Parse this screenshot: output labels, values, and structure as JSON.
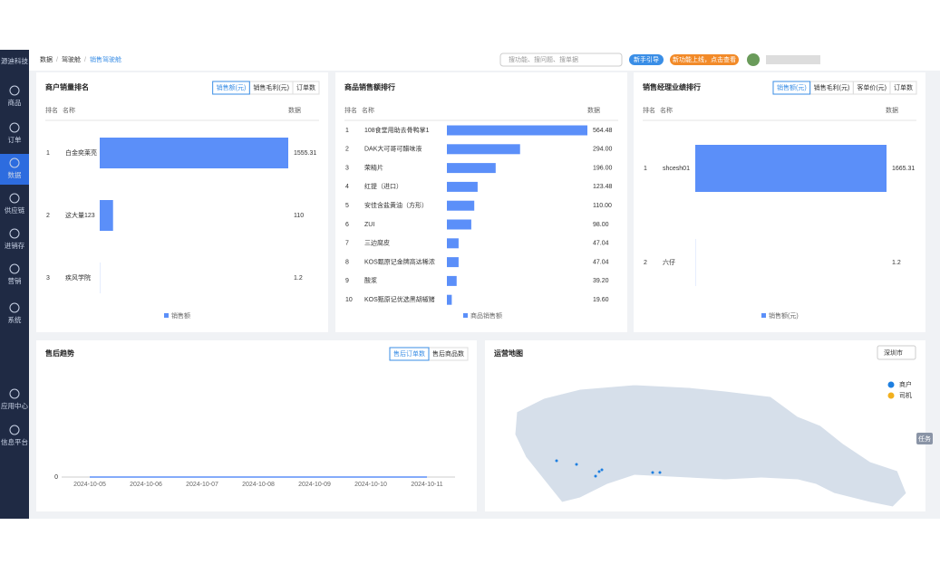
{
  "app": {
    "logo": "源迪科技",
    "nav": [
      "商品",
      "订单",
      "数据",
      "供应链",
      "进销存",
      "营销",
      "系统",
      "应用中心",
      "信息平台"
    ],
    "breadcrumb": [
      "数据",
      "驾驶舱",
      "销售驾驶舱"
    ],
    "search": "搜功能、搜问题、搜单据",
    "guide": "新手引导",
    "news": "新功能上线，点击查看",
    "task": "任务",
    "map": {
      "title": "运营地图",
      "city": "深圳市",
      "legend": [
        {
          "name": "商户",
          "color": "#1e7fe0"
        },
        {
          "name": "司机",
          "color": "#f2b01e"
        }
      ]
    }
  },
  "chart_data": [
    {
      "type": "hbar",
      "title": "商户销量排名",
      "tabs": [
        "销售额(元)",
        "销售毛利(元)",
        "订单数"
      ],
      "columns": [
        "排名",
        "名称",
        "数据"
      ],
      "ranks": [
        1,
        2,
        3
      ],
      "categories": [
        "白金奕莱亮",
        "这大量123",
        "疾风学院"
      ],
      "series": [
        {
          "name": "销售额",
          "color": "#5b8ff9",
          "values": [
            1555.31,
            110,
            1.2
          ]
        }
      ],
      "xlim": [
        0,
        1555.31
      ]
    },
    {
      "type": "hbar",
      "title": "商品销售额排行",
      "columns": [
        "排名",
        "名称",
        "数据"
      ],
      "ranks": [
        1,
        2,
        3,
        4,
        5,
        6,
        7,
        8,
        9,
        10
      ],
      "categories": [
        "108食堂用助去骨鸭掌1",
        "DAK大可哥可醋味液",
        "荣精片",
        "红提（进口）",
        "安佳含盐黄油（方形）",
        "ZUI",
        "三边腐皮",
        "KOS甄原记金牌高达稀浓",
        "酸浆",
        "KOS甄原记优选黑胡椒猪"
      ],
      "series": [
        {
          "name": "商品销售额",
          "color": "#5b8ff9",
          "values": [
            564.48,
            294,
            196,
            123.48,
            110,
            98,
            47.04,
            47.04,
            39.2,
            19.6
          ],
          "value_labels": [
            "564.48",
            "294.00",
            "196.00",
            "123.48",
            "110.00",
            "98.00",
            "47.04",
            "47.04",
            "39.20",
            "19.60"
          ]
        }
      ],
      "xlim": [
        0,
        564.48
      ]
    },
    {
      "type": "hbar",
      "title": "销售经理业绩排行",
      "tabs": [
        "销售额(元)",
        "销售毛利(元)",
        "客单价(元)",
        "订单数"
      ],
      "columns": [
        "排名",
        "名称",
        "数据"
      ],
      "ranks": [
        1,
        2
      ],
      "categories": [
        "shcesh01",
        "六仔"
      ],
      "series": [
        {
          "name": "销售额(元)",
          "color": "#5b8ff9",
          "values": [
            1665.31,
            1.2
          ]
        }
      ],
      "xlim": [
        0,
        1665.31
      ]
    },
    {
      "type": "line",
      "title": "售后趋势",
      "tabs": [
        "售后订单数",
        "售后商品数"
      ],
      "x": [
        "2024-10-05",
        "2024-10-06",
        "2024-10-07",
        "2024-10-08",
        "2024-10-09",
        "2024-10-10",
        "2024-10-11"
      ],
      "series": [
        {
          "name": "售后订单数",
          "color": "#5b8ff9",
          "values": [
            0,
            0,
            0,
            0,
            0,
            0,
            0
          ]
        }
      ],
      "ylim": [
        0,
        1
      ],
      "yticks": [
        0
      ]
    }
  ]
}
